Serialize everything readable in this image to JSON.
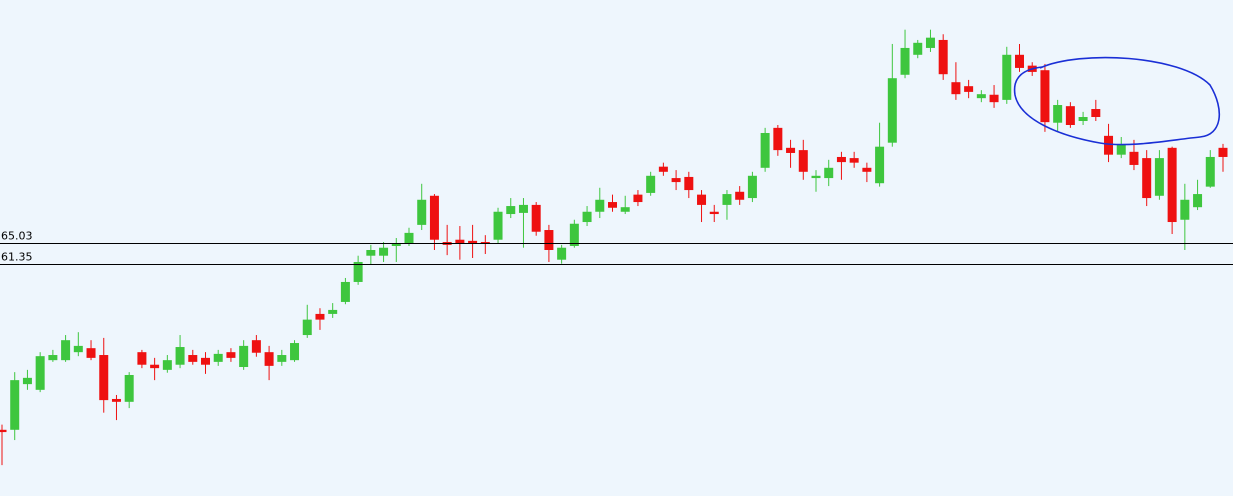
{
  "chart_data": {
    "type": "candlestick",
    "open": [
      32.3,
      32.3,
      40.3,
      39.3,
      44.5,
      44.5,
      45.9,
      46.6,
      45.4,
      37.7,
      37.2,
      45.9,
      43.7,
      42.8,
      43.7,
      45.4,
      44.9,
      44.2,
      45.9,
      43.3,
      48.0,
      45.9,
      44.2,
      44.5,
      48.9,
      52.6,
      52.6,
      54.7,
      58.2,
      62.8,
      62.8,
      64.5,
      65.0,
      68.2,
      73.3,
      65.2,
      65.6,
      65.4,
      65.2,
      65.6,
      70.1,
      70.3,
      71.7,
      67.3,
      62.1,
      64.5,
      68.7,
      70.5,
      72.2,
      70.5,
      73.5,
      73.8,
      78.4,
      76.4,
      76.6,
      73.5,
      70.5,
      71.7,
      74.0,
      72.9,
      78.2,
      85.2,
      81.7,
      81.3,
      76.4,
      76.4,
      80.1,
      79.9,
      78.2,
      75.5,
      82.6,
      94.5,
      98.0,
      99.2,
      100.6,
      93.2,
      92.5,
      90.4,
      91.0,
      90.1,
      98.0,
      96.1,
      95.3,
      86.1,
      89.0,
      86.4,
      88.5,
      83.8,
      80.5,
      81.0,
      79.9,
      73.3,
      81.7,
      69.1,
      71.3,
      74.9,
      81.7
    ],
    "high": [
      33.2,
      42.4,
      42.8,
      45.9,
      46.3,
      48.9,
      49.4,
      48.0,
      48.4,
      38.4,
      42.4,
      46.3,
      44.9,
      45.4,
      48.9,
      46.3,
      45.9,
      46.3,
      46.6,
      48.0,
      48.9,
      47.0,
      46.3,
      48.0,
      54.2,
      53.6,
      54.5,
      58.9,
      62.8,
      64.7,
      65.2,
      65.9,
      67.7,
      75.4,
      73.6,
      68.2,
      68.0,
      68.2,
      66.4,
      71.2,
      72.9,
      72.9,
      72.2,
      68.2,
      64.7,
      69.1,
      71.5,
      74.7,
      73.5,
      73.3,
      74.3,
      77.5,
      79.1,
      77.8,
      77.5,
      74.3,
      71.7,
      74.3,
      75.0,
      77.5,
      85.2,
      85.7,
      83.1,
      83.1,
      77.8,
      79.6,
      81.0,
      81.0,
      79.1,
      86.1,
      99.9,
      102.4,
      100.6,
      102.4,
      101.6,
      96.7,
      93.6,
      91.8,
      92.7,
      99.4,
      99.9,
      96.7,
      96.4,
      90.1,
      89.7,
      88.0,
      90.1,
      85.9,
      83.6,
      83.1,
      81.3,
      81.3,
      81.9,
      75.4,
      76.1,
      81.3,
      82.4
    ],
    "low": [
      26.1,
      30.5,
      39.3,
      38.9,
      44.2,
      44.2,
      45.2,
      44.5,
      35.3,
      34.0,
      36.1,
      43.1,
      41.0,
      42.3,
      43.1,
      43.7,
      42.1,
      43.5,
      44.2,
      42.8,
      45.1,
      41.0,
      43.5,
      44.2,
      48.4,
      49.8,
      51.9,
      54.3,
      57.7,
      61.2,
      61.7,
      61.7,
      64.5,
      67.3,
      63.8,
      62.9,
      62.1,
      62.4,
      63.1,
      64.9,
      69.4,
      64.2,
      66.3,
      61.7,
      61.4,
      64.2,
      68.0,
      69.4,
      70.5,
      70.1,
      71.5,
      73.3,
      76.8,
      74.3,
      72.9,
      68.7,
      68.7,
      69.1,
      71.7,
      72.2,
      77.5,
      80.3,
      78.2,
      76.1,
      74.0,
      75.0,
      76.1,
      78.2,
      75.7,
      74.9,
      81.9,
      93.9,
      97.4,
      98.5,
      93.6,
      90.1,
      90.4,
      89.7,
      88.7,
      89.4,
      95.0,
      94.3,
      84.5,
      84.5,
      85.2,
      85.7,
      86.4,
      79.2,
      79.9,
      77.8,
      71.5,
      72.6,
      66.6,
      63.8,
      70.8,
      74.7,
      77.5
    ],
    "close": [
      31.9,
      41.0,
      41.4,
      45.2,
      45.4,
      48.0,
      47.0,
      44.9,
      37.5,
      37.2,
      41.9,
      43.7,
      43.1,
      44.5,
      46.8,
      44.2,
      43.7,
      45.6,
      44.9,
      47.0,
      45.8,
      43.5,
      45.4,
      47.5,
      51.6,
      51.6,
      53.3,
      58.2,
      61.7,
      63.8,
      64.2,
      64.9,
      66.8,
      72.6,
      65.6,
      64.7,
      65.0,
      65.0,
      65.0,
      70.5,
      71.5,
      71.7,
      67.0,
      63.8,
      64.2,
      68.4,
      70.5,
      72.6,
      71.2,
      71.3,
      72.2,
      76.8,
      77.5,
      75.7,
      74.3,
      71.7,
      70.1,
      73.6,
      72.6,
      76.8,
      84.3,
      81.3,
      80.8,
      77.5,
      76.8,
      78.2,
      79.2,
      79.1,
      77.5,
      81.9,
      93.9,
      99.2,
      100.1,
      101.0,
      94.6,
      91.1,
      91.5,
      91.1,
      89.7,
      98.0,
      95.7,
      95.0,
      86.2,
      89.2,
      85.7,
      87.1,
      87.1,
      80.5,
      82.2,
      78.7,
      72.9,
      79.9,
      68.7,
      72.6,
      73.6,
      80.1,
      80.1
    ],
    "up_color": "#3ec63e",
    "down_color": "#ee1111",
    "ylim": [
      20.7,
      107.6
    ],
    "hlines": [
      65.03,
      61.35
    ]
  }
}
